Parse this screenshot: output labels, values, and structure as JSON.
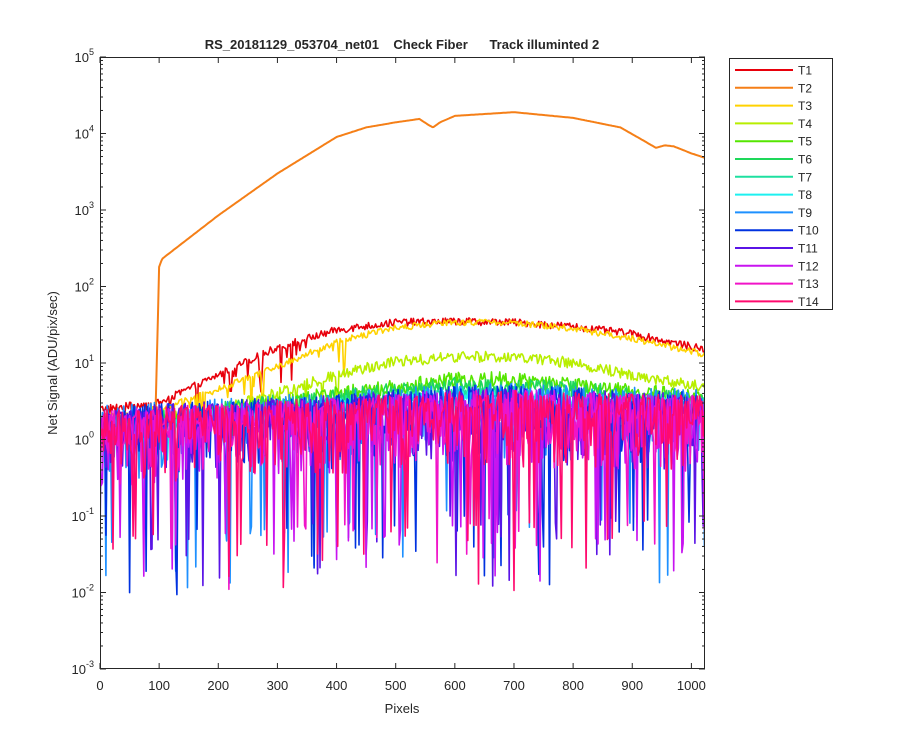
{
  "chart_data": {
    "type": "line",
    "title": "RS_20181129_053704_net01    Check Fiber      Track illuminted 2",
    "xlabel": "Pixels",
    "ylabel": "Net Signal (ADU/pix/sec)",
    "xlim": [
      0,
      1023
    ],
    "ylim": [
      0.001,
      100000
    ],
    "yscale": "log",
    "grid": false,
    "legend_position": "outside-top-right",
    "x_ticks": [
      {
        "value": 0,
        "label": "0"
      },
      {
        "value": 100,
        "label": "100"
      },
      {
        "value": 200,
        "label": "200"
      },
      {
        "value": 300,
        "label": "300"
      },
      {
        "value": 400,
        "label": "400"
      },
      {
        "value": 500,
        "label": "500"
      },
      {
        "value": 600,
        "label": "600"
      },
      {
        "value": 700,
        "label": "700"
      },
      {
        "value": 800,
        "label": "800"
      },
      {
        "value": 900,
        "label": "900"
      },
      {
        "value": 1000,
        "label": "1000"
      }
    ],
    "y_ticks": [
      {
        "value": 0.001,
        "base": "10",
        "exp": "-3"
      },
      {
        "value": 0.01,
        "base": "10",
        "exp": "-2"
      },
      {
        "value": 0.1,
        "base": "10",
        "exp": "-1"
      },
      {
        "value": 1,
        "base": "10",
        "exp": "0"
      },
      {
        "value": 10,
        "base": "10",
        "exp": "1"
      },
      {
        "value": 100,
        "base": "10",
        "exp": "2"
      },
      {
        "value": 1000,
        "base": "10",
        "exp": "3"
      },
      {
        "value": 10000,
        "base": "10",
        "exp": "4"
      },
      {
        "value": 100000,
        "base": "10",
        "exp": "5"
      }
    ],
    "noise": {
      "lo": 0.3,
      "hi": 3.0,
      "dip_prob": 0.06
    },
    "series": [
      {
        "name": "T1",
        "color": "#e8000b",
        "profile": [
          [
            0,
            2.5
          ],
          [
            100,
            3
          ],
          [
            200,
            7
          ],
          [
            300,
            16
          ],
          [
            400,
            27
          ],
          [
            500,
            34
          ],
          [
            600,
            35
          ],
          [
            700,
            34
          ],
          [
            800,
            30
          ],
          [
            900,
            24
          ],
          [
            1023,
            15
          ]
        ],
        "jitter": 1.12
      },
      {
        "name": "T2",
        "color": "#f57f17",
        "profile": [
          [
            0,
            1
          ],
          [
            94,
            2.5
          ],
          [
            100,
            180
          ],
          [
            105,
            230
          ],
          [
            200,
            850
          ],
          [
            300,
            3000
          ],
          [
            400,
            9000
          ],
          [
            450,
            12000
          ],
          [
            500,
            14000
          ],
          [
            540,
            15500
          ],
          [
            555,
            13000
          ],
          [
            563,
            12000
          ],
          [
            575,
            14000
          ],
          [
            600,
            17000
          ],
          [
            700,
            19000
          ],
          [
            800,
            16000
          ],
          [
            880,
            12000
          ],
          [
            920,
            8000
          ],
          [
            940,
            6500
          ],
          [
            955,
            7000
          ],
          [
            970,
            6800
          ],
          [
            1000,
            5500
          ],
          [
            1023,
            4800
          ]
        ],
        "jitter": 1.0
      },
      {
        "name": "T3",
        "color": "#ffd200",
        "profile": [
          [
            0,
            2
          ],
          [
            100,
            2.5
          ],
          [
            200,
            4.5
          ],
          [
            300,
            9
          ],
          [
            400,
            19
          ],
          [
            500,
            29
          ],
          [
            600,
            34
          ],
          [
            700,
            34
          ],
          [
            800,
            28
          ],
          [
            900,
            21
          ],
          [
            1023,
            13
          ]
        ],
        "jitter": 1.1
      },
      {
        "name": "T4",
        "color": "#b8ee00",
        "profile": [
          [
            0,
            1.5
          ],
          [
            200,
            2.5
          ],
          [
            300,
            4
          ],
          [
            400,
            7
          ],
          [
            500,
            10.5
          ],
          [
            600,
            12
          ],
          [
            700,
            12
          ],
          [
            800,
            10
          ],
          [
            900,
            7
          ],
          [
            1023,
            4.8
          ]
        ],
        "jitter": 1.18
      },
      {
        "name": "T5",
        "color": "#55e600",
        "profile": [
          [
            0,
            1.5
          ],
          [
            200,
            2.2
          ],
          [
            400,
            4
          ],
          [
            600,
            6
          ],
          [
            700,
            6
          ],
          [
            800,
            5
          ],
          [
            1023,
            3.5
          ]
        ],
        "jitter": 1.28
      },
      {
        "name": "T6",
        "color": "#1ed85a",
        "profile": [
          [
            0,
            1.5
          ],
          [
            300,
            3
          ],
          [
            600,
            5
          ],
          [
            800,
            4.5
          ],
          [
            1023,
            3
          ]
        ],
        "jitter": 1.3
      },
      {
        "name": "T7",
        "color": "#1ee0a0",
        "profile": [
          [
            0,
            1.5
          ],
          [
            300,
            2.5
          ],
          [
            650,
            4
          ],
          [
            1023,
            2.8
          ]
        ],
        "jitter": 1.3
      },
      {
        "name": "T8",
        "color": "#1ef0f0",
        "profile": [
          [
            0,
            1.5
          ],
          [
            300,
            2.3
          ],
          [
            650,
            3.6
          ],
          [
            1023,
            2.6
          ]
        ],
        "jitter": 1.3
      },
      {
        "name": "T9",
        "color": "#1e90ff",
        "profile": [
          [
            0,
            1.5
          ],
          [
            650,
            3
          ],
          [
            1023,
            2.4
          ]
        ],
        "noisy": true
      },
      {
        "name": "T10",
        "color": "#0032e0",
        "profile": [
          [
            0,
            1.4
          ],
          [
            650,
            2.8
          ],
          [
            1023,
            2.2
          ]
        ],
        "noisy": true
      },
      {
        "name": "T11",
        "color": "#5a14e6",
        "profile": [
          [
            0,
            1.4
          ],
          [
            650,
            2.6
          ],
          [
            1023,
            2.1
          ]
        ],
        "noisy": true
      },
      {
        "name": "T12",
        "color": "#c814f0",
        "profile": [
          [
            0,
            1.3
          ],
          [
            650,
            2.5
          ],
          [
            1023,
            2
          ]
        ],
        "noisy": true
      },
      {
        "name": "T13",
        "color": "#f014c8",
        "profile": [
          [
            0,
            1.3
          ],
          [
            650,
            2.4
          ],
          [
            1023,
            2
          ]
        ],
        "noisy": true
      },
      {
        "name": "T14",
        "color": "#ff0a6e",
        "profile": [
          [
            0,
            1.3
          ],
          [
            650,
            2.4
          ],
          [
            1023,
            2
          ]
        ],
        "noisy": true
      }
    ]
  }
}
